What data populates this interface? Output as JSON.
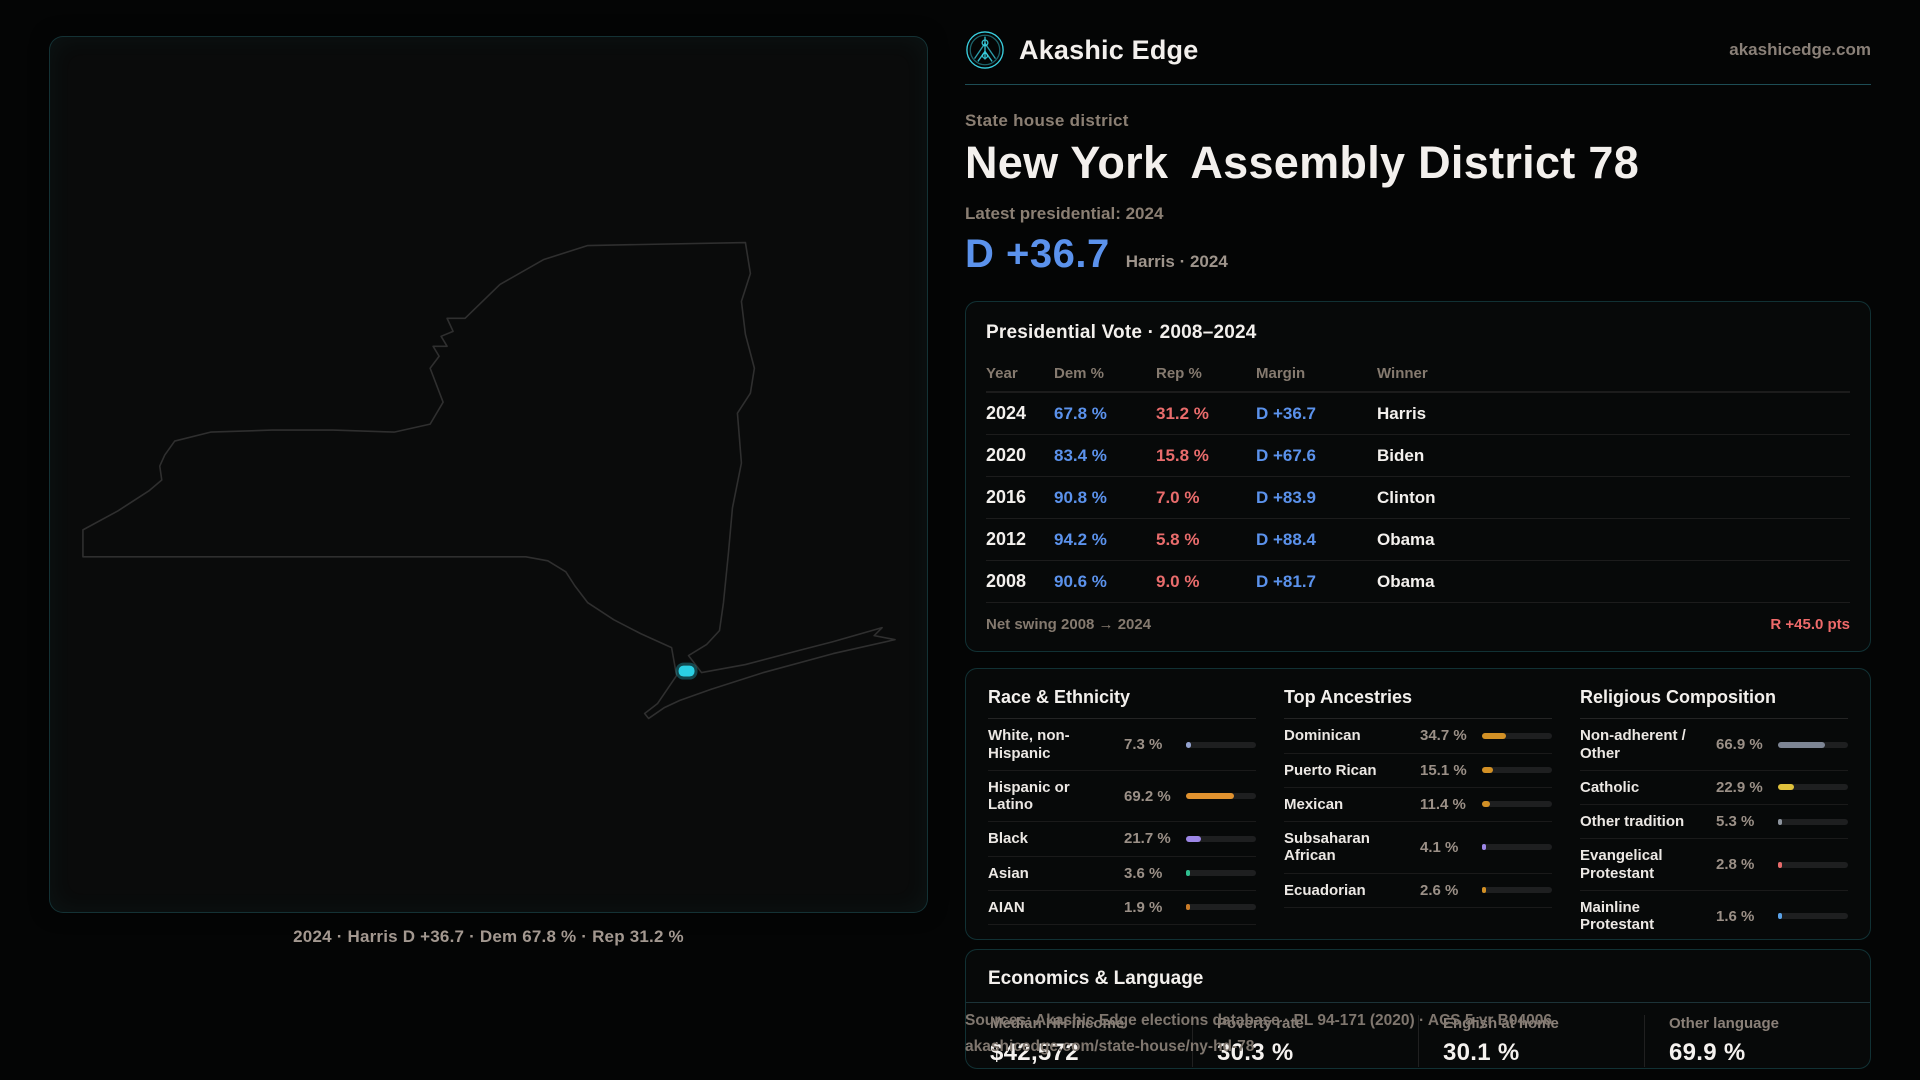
{
  "brand": {
    "name": "Akashic Edge",
    "domain": "akashicedge.com",
    "accent": "#3ad0e0"
  },
  "hero": {
    "kicker": "State house district",
    "title_state": "New York",
    "title_district": "Assembly District 78",
    "latest_label": "Latest presidential: 2024",
    "margin_big": "D +36.7",
    "margin_context": "Harris · 2024"
  },
  "map": {
    "caption": "2024 · Harris D +36.7 · Dem 67.8 % · Rep 31.2 %",
    "marker_color": "#2bd0e4",
    "outline_color": "#2f2f2f"
  },
  "presidential_table": {
    "title": "Presidential Vote · 2008–2024",
    "columns": [
      "Year",
      "Dem %",
      "Rep %",
      "Margin",
      "Winner"
    ],
    "rows": [
      {
        "year": "2024",
        "dem": "67.8 %",
        "rep": "31.2 %",
        "margin": "D +36.7",
        "winner": "Harris"
      },
      {
        "year": "2020",
        "dem": "83.4 %",
        "rep": "15.8 %",
        "margin": "D +67.6",
        "winner": "Biden"
      },
      {
        "year": "2016",
        "dem": "90.8 %",
        "rep": "7.0 %",
        "margin": "D +83.9",
        "winner": "Clinton"
      },
      {
        "year": "2012",
        "dem": "94.2 %",
        "rep": "5.8 %",
        "margin": "D +88.4",
        "winner": "Obama"
      },
      {
        "year": "2008",
        "dem": "90.6 %",
        "rep": "9.0 %",
        "margin": "D +81.7",
        "winner": "Obama"
      }
    ],
    "net_swing_label": "Net swing 2008 → 2024",
    "net_swing_value": "R +45.0 pts"
  },
  "demographics": {
    "race": {
      "title": "Race & Ethnicity",
      "rows": [
        {
          "label": "White, non-Hispanic",
          "value": "7.3 %",
          "pct": 7.3,
          "color": "#93a2cf"
        },
        {
          "label": "Hispanic or Latino",
          "value": "69.2 %",
          "pct": 69.2,
          "color": "#e0922f"
        },
        {
          "label": "Black",
          "value": "21.7 %",
          "pct": 21.7,
          "color": "#9d87e6"
        },
        {
          "label": "Asian",
          "value": "3.6 %",
          "pct": 3.6,
          "color": "#2fbf8f"
        },
        {
          "label": "AIAN",
          "value": "1.9 %",
          "pct": 1.9,
          "color": "#c97b28"
        }
      ]
    },
    "ancestries": {
      "title": "Top Ancestries",
      "rows": [
        {
          "label": "Dominican",
          "value": "34.7 %",
          "pct": 34.7,
          "color": "#d id29025"
        },
        {
          "label": "Puerto Rican",
          "value": "15.1 %",
          "pct": 15.1,
          "color": "#d29025"
        },
        {
          "label": "Mexican",
          "value": "11.4 %",
          "pct": 11.4,
          "color": "#d29025"
        },
        {
          "label": "Subsaharan African",
          "value": "4.1 %",
          "pct": 4.1,
          "color": "#9d87e6"
        },
        {
          "label": "Ecuadorian",
          "value": "2.6 %",
          "pct": 2.6,
          "color": "#d29025"
        }
      ]
    },
    "religion": {
      "title": "Religious Composition",
      "rows": [
        {
          "label": "Non-adherent / Other",
          "value": "66.9 %",
          "pct": 66.9,
          "color": "#7d8594"
        },
        {
          "label": "Catholic",
          "value": "22.9 %",
          "pct": 22.9,
          "color": "#dfc13c"
        },
        {
          "label": "Other tradition",
          "value": "5.3 %",
          "pct": 5.3,
          "color": "#8d949e"
        },
        {
          "label": "Evangelical Protestant",
          "value": "2.8 %",
          "pct": 2.8,
          "color": "#e66a6a"
        },
        {
          "label": "Mainline Protestant",
          "value": "1.6 %",
          "pct": 1.6,
          "color": "#5aa2e8"
        }
      ]
    }
  },
  "economics": {
    "title": "Economics & Language",
    "stats": [
      {
        "label": "Median HH income",
        "value": "$42,572"
      },
      {
        "label": "Poverty rate",
        "value": "30.3 %"
      },
      {
        "label": "English at home",
        "value": "30.1 %"
      },
      {
        "label": "Other language",
        "value": "69.9 %"
      }
    ]
  },
  "source": {
    "line1": "Sources: Akashic Edge elections database · PL 94-171 (2020) · ACS 5-yr B04006",
    "line2": "akashicedge.com/state-house/ny-hd-78"
  }
}
